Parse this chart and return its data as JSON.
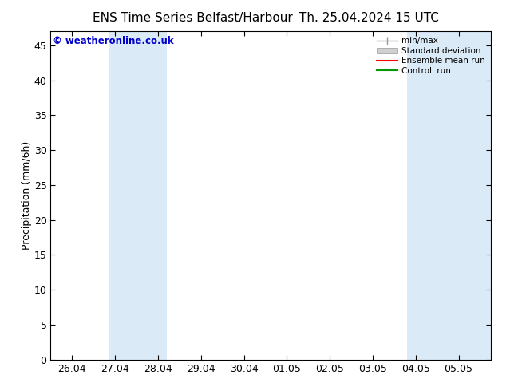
{
  "title_left": "ENS Time Series Belfast/Harbour",
  "title_right": "Th. 25.04.2024 15 UTC",
  "ylabel": "Precipitation (mm/6h)",
  "ylim": [
    0,
    47
  ],
  "yticks": [
    0,
    5,
    10,
    15,
    20,
    25,
    30,
    35,
    40,
    45
  ],
  "x_labels": [
    "26.04",
    "27.04",
    "28.04",
    "29.04",
    "30.04",
    "01.05",
    "02.05",
    "03.05",
    "04.05",
    "05.05"
  ],
  "x_positions": [
    0,
    1,
    2,
    3,
    4,
    5,
    6,
    7,
    8,
    9
  ],
  "xlim": [
    -0.5,
    9.75
  ],
  "shaded_bands": [
    [
      0.85,
      1.5
    ],
    [
      1.5,
      2.2
    ],
    [
      7.8,
      8.5
    ],
    [
      8.5,
      9.2
    ],
    [
      9.2,
      9.75
    ]
  ],
  "shade_color": "#daeaf7",
  "background_color": "#ffffff",
  "copyright_text": "© weatheronline.co.uk",
  "copyright_color": "#0000cc",
  "legend_labels": [
    "min/max",
    "Standard deviation",
    "Ensemble mean run",
    "Controll run"
  ],
  "legend_colors": [
    "#999999",
    "#cccccc",
    "#ff0000",
    "#009900"
  ],
  "grid_color": "#dddddd",
  "title_fontsize": 11,
  "tick_label_fontsize": 9,
  "axis_label_fontsize": 9
}
